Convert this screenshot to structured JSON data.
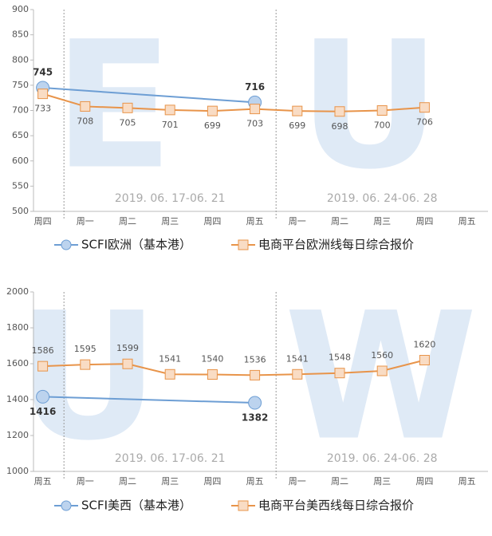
{
  "chart_data": [
    {
      "type": "line",
      "watermark": "E U",
      "categories": [
        "周四",
        "周一",
        "周二",
        "周三",
        "周四",
        "周五",
        "周一",
        "周二",
        "周三",
        "周四",
        "周五"
      ],
      "ylim": [
        500,
        900
      ],
      "yticks": [
        500,
        550,
        600,
        650,
        700,
        750,
        800,
        850,
        900
      ],
      "annotations": [
        "2019. 06. 17-06. 21",
        "2019. 06. 24-06. 28"
      ],
      "series": [
        {
          "name": "SCFI欧洲（基本港）",
          "color": "#6d9ed4",
          "connect_gaps": true,
          "values": [
            745,
            null,
            null,
            null,
            null,
            716,
            null,
            null,
            null,
            null,
            null
          ]
        },
        {
          "name": "电商平台欧洲线每日综合报价",
          "color": "#e8944a",
          "values": [
            733,
            708,
            705,
            701,
            699,
            703,
            699,
            698,
            700,
            706,
            null
          ]
        }
      ]
    },
    {
      "type": "line",
      "watermark": "U W",
      "categories": [
        "周五",
        "周一",
        "周二",
        "周三",
        "周四",
        "周五",
        "周一",
        "周二",
        "周三",
        "周四",
        "周五"
      ],
      "ylim": [
        1000,
        2000
      ],
      "yticks": [
        1000,
        1200,
        1400,
        1600,
        1800,
        2000
      ],
      "annotations": [
        "2019. 06. 17-06. 21",
        "2019. 06. 24-06. 28"
      ],
      "series": [
        {
          "name": "SCFI美西（基本港）",
          "color": "#6d9ed4",
          "connect_gaps": true,
          "values": [
            1416,
            null,
            null,
            null,
            null,
            1382,
            null,
            null,
            null,
            null,
            null
          ]
        },
        {
          "name": "电商平台美西线每日综合报价",
          "color": "#e8944a",
          "values": [
            1586,
            1595,
            1599,
            1541,
            1540,
            1536,
            1541,
            1548,
            1560,
            1620,
            null
          ]
        }
      ]
    }
  ]
}
